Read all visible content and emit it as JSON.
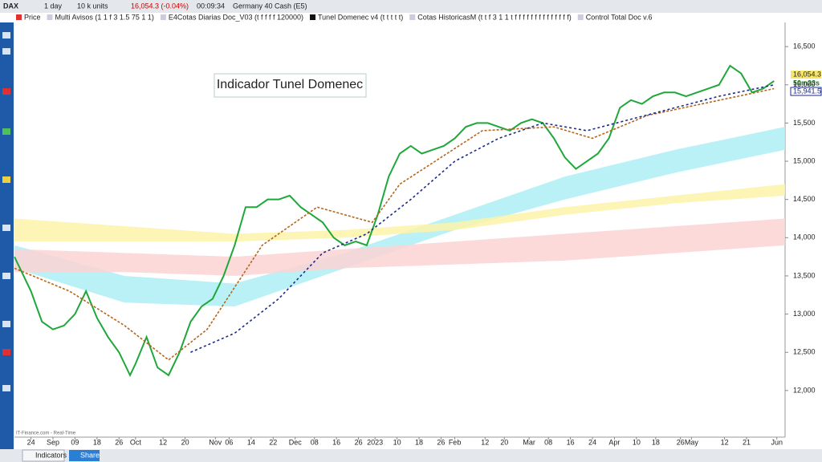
{
  "toolbar": {
    "symbol": "DAX",
    "timeframe": "1 day",
    "units": "10 k units",
    "price": "16,054.3 (-0.04%)",
    "time": "00:09:34",
    "instrument": "Germany 40 Cash (E5)"
  },
  "legend": [
    "Price",
    "Multi Avisos (1 1 f 3 1.5 75 1 1)",
    "E4Cotas Diarias Doc_V03 (t f f f f 120000)",
    "Tunel Domenec v4 (t t t t t)",
    "Cotas HistoricasM (t t f 3 1 1 t f f f f f f f f f f f f f f)",
    "Control Total Doc v.6"
  ],
  "price_labels": {
    "last": "16,054.3",
    "countdown": "50m23s",
    "level": "15,941.5"
  },
  "footer": {
    "source": "IT-Finance.com - Real-Time",
    "indicators": "Indicators",
    "share": "Share"
  },
  "chart_data": {
    "type": "line",
    "annotation": "Indicador Tunel Domenec",
    "xlim": [
      0,
      280
    ],
    "xticks": [
      {
        "value": 6,
        "label": "24"
      },
      {
        "value": 14,
        "label": "Sep"
      },
      {
        "value": 22,
        "label": "09"
      },
      {
        "value": 30,
        "label": "18"
      },
      {
        "value": 38,
        "label": "26"
      },
      {
        "value": 44,
        "label": "Oct"
      },
      {
        "value": 54,
        "label": "12"
      },
      {
        "value": 62,
        "label": "20"
      },
      {
        "value": 73,
        "label": "Nov"
      },
      {
        "value": 78,
        "label": "06"
      },
      {
        "value": 86,
        "label": "14"
      },
      {
        "value": 94,
        "label": "22"
      },
      {
        "value": 102,
        "label": "Dec"
      },
      {
        "value": 109,
        "label": "08"
      },
      {
        "value": 117,
        "label": "16"
      },
      {
        "value": 125,
        "label": "26"
      },
      {
        "value": 131,
        "label": "2023"
      },
      {
        "value": 139,
        "label": "10"
      },
      {
        "value": 147,
        "label": "18"
      },
      {
        "value": 155,
        "label": "26"
      },
      {
        "value": 160,
        "label": "Feb"
      },
      {
        "value": 171,
        "label": "12"
      },
      {
        "value": 178,
        "label": "20"
      },
      {
        "value": 187,
        "label": "Mar"
      },
      {
        "value": 194,
        "label": "08"
      },
      {
        "value": 202,
        "label": "16"
      },
      {
        "value": 210,
        "label": "24"
      },
      {
        "value": 218,
        "label": "Apr"
      },
      {
        "value": 226,
        "label": "10"
      },
      {
        "value": 233,
        "label": "18"
      },
      {
        "value": 242,
        "label": "26"
      },
      {
        "value": 246,
        "label": "May"
      },
      {
        "value": 258,
        "label": "12"
      },
      {
        "value": 266,
        "label": "21"
      },
      {
        "value": 277,
        "label": "Jun"
      }
    ],
    "ylim": [
      11390,
      16795
    ],
    "yticks": [
      {
        "value": 12000,
        "label": "12,000"
      },
      {
        "value": 12500,
        "label": "12,500"
      },
      {
        "value": 13000,
        "label": "13,000"
      },
      {
        "value": 13500,
        "label": "13,500"
      },
      {
        "value": 14000,
        "label": "14,000"
      },
      {
        "value": 14500,
        "label": "14,500"
      },
      {
        "value": 15000,
        "label": "15,000"
      },
      {
        "value": 15500,
        "label": "15,500"
      },
      {
        "value": 16000,
        "label": "16,000"
      },
      {
        "value": 16500,
        "label": "16,500"
      }
    ],
    "bands": [
      {
        "color": "#aeeef5",
        "x": [
          0,
          40,
          80,
          120,
          160,
          200,
          240,
          280
        ],
        "upper": [
          13900,
          13500,
          13400,
          13800,
          14300,
          14800,
          15150,
          15450
        ],
        "lower": [
          13600,
          13150,
          13100,
          13600,
          14100,
          14500,
          14850,
          15150
        ]
      },
      {
        "color": "#fbf3a8",
        "x": [
          0,
          40,
          80,
          120,
          160,
          200,
          240,
          280
        ],
        "upper": [
          14250,
          14150,
          14050,
          14100,
          14200,
          14400,
          14550,
          14700
        ],
        "lower": [
          13950,
          13950,
          13950,
          14000,
          14100,
          14300,
          14450,
          14550
        ]
      },
      {
        "color": "#fbd3d3",
        "x": [
          0,
          40,
          80,
          120,
          160,
          200,
          240,
          280
        ],
        "upper": [
          13850,
          13800,
          13750,
          13850,
          13950,
          14050,
          14150,
          14250
        ],
        "lower": [
          13550,
          13550,
          13500,
          13600,
          13650,
          13700,
          13800,
          13900
        ]
      }
    ],
    "series": [
      {
        "color": "#1fa83a",
        "dash": "none",
        "x": [
          0,
          6,
          10,
          14,
          18,
          22,
          26,
          30,
          34,
          38,
          42,
          44,
          48,
          52,
          56,
          60,
          64,
          68,
          72,
          76,
          80,
          84,
          88,
          92,
          96,
          100,
          104,
          108,
          112,
          116,
          120,
          124,
          128,
          132,
          136,
          140,
          144,
          148,
          152,
          156,
          160,
          164,
          168,
          172,
          176,
          180,
          184,
          188,
          192,
          196,
          200,
          204,
          208,
          212,
          216,
          220,
          224,
          228,
          232,
          236,
          240,
          244,
          248,
          252,
          256,
          260,
          264,
          268,
          272,
          276
        ],
        "values": [
          13750,
          13300,
          12900,
          12800,
          12850,
          13000,
          13300,
          12950,
          12700,
          12500,
          12200,
          12350,
          12700,
          12300,
          12200,
          12500,
          12900,
          13100,
          13200,
          13500,
          13900,
          14400,
          14400,
          14500,
          14500,
          14550,
          14400,
          14300,
          14200,
          14000,
          13900,
          13950,
          13900,
          14300,
          14800,
          15100,
          15200,
          15100,
          15150,
          15200,
          15300,
          15450,
          15500,
          15500,
          15450,
          15400,
          15500,
          15550,
          15500,
          15300,
          15050,
          14900,
          15000,
          15100,
          15300,
          15700,
          15800,
          15750,
          15850,
          15900,
          15900,
          15850,
          15900,
          15950,
          16000,
          16250,
          16150,
          15900,
          15950,
          16050
        ]
      },
      {
        "color": "#b5651d",
        "dash": "3 2",
        "x": [
          0,
          20,
          40,
          56,
          70,
          90,
          110,
          130,
          140,
          170,
          196,
          210,
          230,
          276
        ],
        "values": [
          13600,
          13300,
          12850,
          12400,
          12800,
          13900,
          14400,
          14200,
          14700,
          15400,
          15450,
          15300,
          15600,
          15950
        ]
      },
      {
        "color": "#1c2a8a",
        "dash": "3 3",
        "x": [
          64,
          80,
          96,
          112,
          128,
          144,
          160,
          176,
          192,
          208,
          224,
          240,
          256,
          276
        ],
        "values": [
          12500,
          12750,
          13200,
          13800,
          14050,
          14500,
          15000,
          15300,
          15500,
          15400,
          15550,
          15700,
          15850,
          16000
        ]
      }
    ]
  }
}
